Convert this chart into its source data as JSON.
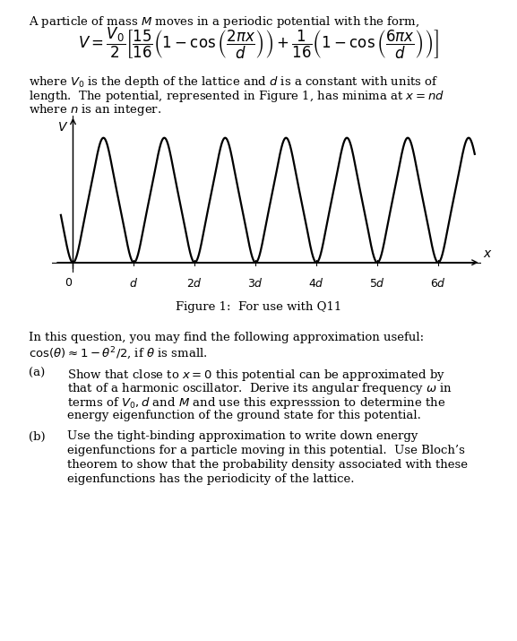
{
  "title_text": "A particle of mass $M$ moves in a periodic potential with the form,",
  "equation": "$V = \\dfrac{V_0}{2} \\left[ \\dfrac{15}{16} \\left( 1 - \\cos\\left( \\dfrac{2\\pi x}{d} \\right) \\right) + \\dfrac{1}{16} \\left( 1 - \\cos\\left( \\dfrac{6\\pi x}{d} \\right) \\right) \\right]$",
  "body_text1_line1": "where $V_0$ is the depth of the lattice and $d$ is a constant with units of",
  "body_text1_line2": "length.  The potential, represented in Figure 1, has minima at $x = nd$",
  "body_text1_line3": "where $n$ is an integer.",
  "figure_caption": "Figure 1:  For use with Q11",
  "approx_line1": "In this question, you may find the following approximation useful:",
  "approx_line2": "$\\cos(\\theta) \\approx 1 - \\theta^2/2$, if $\\theta$ is small.",
  "part_a_label": "(a)",
  "part_a_line1": "Show that close to $x = 0$ this potential can be approximated by",
  "part_a_line2": "that of a harmonic oscillator.  Derive its angular frequency $\\omega$ in",
  "part_a_line3": "terms of $V_0, d$ and $M$ and use this expresssion to determine the",
  "part_a_line4": "energy eigenfunction of the ground state for this potential.",
  "part_b_label": "(b)",
  "part_b_line1": "Use the tight-binding approximation to write down energy",
  "part_b_line2": "eigenfunctions for a particle moving in this potential.  Use Bloch’s",
  "part_b_line3": "theorem to show that the probability density associated with these",
  "part_b_line4": "eigenfunctions has the periodicity of the lattice.",
  "xlabel": "$x$",
  "ylabel": "$V$",
  "xlim": [
    -0.35,
    6.7
  ],
  "ylim": [
    -0.08,
    1.18
  ],
  "xticks": [
    0,
    1,
    2,
    3,
    4,
    5,
    6
  ],
  "xtick_labels": [
    "$0$",
    "$d$",
    "$2d$",
    "$3d$",
    "$4d$",
    "$5d$",
    "$6d$"
  ],
  "bg_color": "#ffffff",
  "line_color": "#000000",
  "curve_lw": 1.6,
  "fontsize_body": 9.5,
  "fontsize_eq": 12
}
